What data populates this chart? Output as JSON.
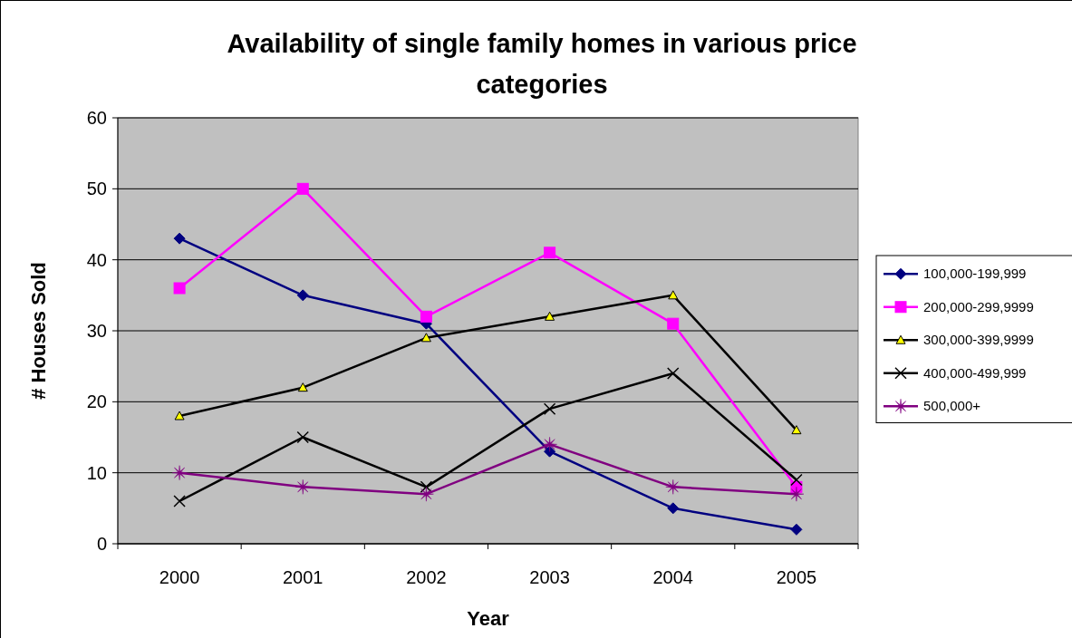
{
  "chart_data": {
    "type": "line",
    "title": "Availability of single family homes in various price categories",
    "xlabel": "Year",
    "ylabel": "# Houses Sold",
    "categories": [
      "2000",
      "2001",
      "2002",
      "2003",
      "2004",
      "2005"
    ],
    "series": [
      {
        "name": "100,000-199,999",
        "color": "#000080",
        "marker": "diamond",
        "values": [
          43,
          35,
          31,
          13,
          5,
          2
        ]
      },
      {
        "name": "200,000-299,9999",
        "color": "#ff00ff",
        "marker": "square",
        "values": [
          36,
          50,
          32,
          41,
          31,
          8
        ]
      },
      {
        "name": "300,000-399,9999",
        "color": "#000000",
        "marker": "triangle",
        "values": [
          18,
          22,
          29,
          32,
          35,
          16
        ]
      },
      {
        "name": "400,000-499,999",
        "color": "#000000",
        "marker": "cross",
        "values": [
          6,
          15,
          8,
          19,
          24,
          9
        ]
      },
      {
        "name": "500,000+",
        "color": "#800080",
        "marker": "star",
        "values": [
          10,
          8,
          7,
          14,
          8,
          7
        ]
      }
    ],
    "ylim": [
      0,
      60
    ],
    "yticks": [
      0,
      10,
      20,
      30,
      40,
      50,
      60
    ],
    "grid": "y",
    "legend": "right",
    "line_style": "solid"
  }
}
